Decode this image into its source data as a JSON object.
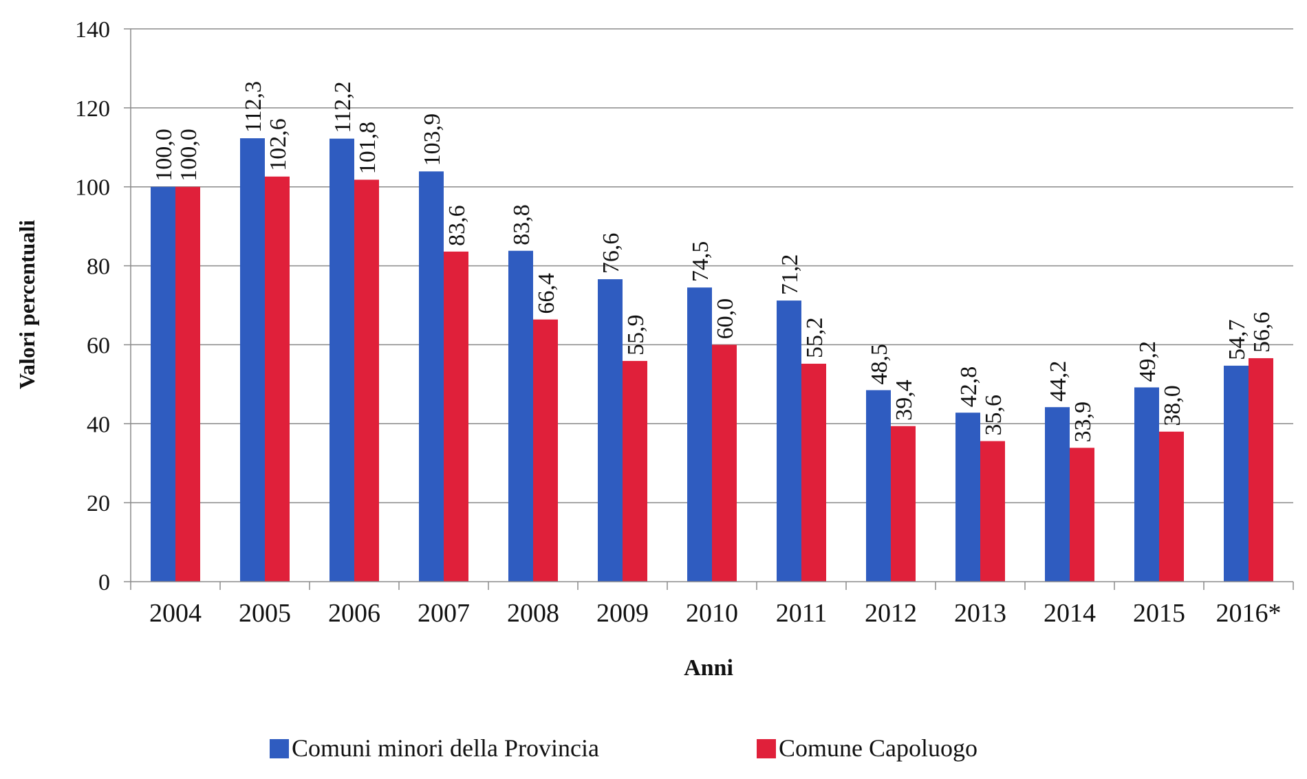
{
  "chart_data": {
    "type": "bar",
    "title": "",
    "xlabel": "Anni",
    "ylabel": "Valori percentuali",
    "ylim": [
      0,
      140
    ],
    "yticks": [
      0,
      20,
      40,
      60,
      80,
      100,
      120,
      140
    ],
    "grid": true,
    "legend_position": "bottom",
    "categories": [
      "2004",
      "2005",
      "2006",
      "2007",
      "2008",
      "2009",
      "2010",
      "2011",
      "2012",
      "2013",
      "2014",
      "2015",
      "2016*"
    ],
    "series": [
      {
        "name": "Comuni minori della Provincia",
        "color": "#2f5cc0",
        "values": [
          100.0,
          112.3,
          112.2,
          103.9,
          83.8,
          76.6,
          74.5,
          71.2,
          48.5,
          42.8,
          44.2,
          49.2,
          54.7
        ],
        "labels": [
          "100,0",
          "112,3",
          "112,2",
          "103,9",
          "83,8",
          "76,6",
          "74,5",
          "71,2",
          "48,5",
          "42,8",
          "44,2",
          "49,2",
          "54,7"
        ]
      },
      {
        "name": "Comune Capoluogo",
        "color": "#e0203a",
        "values": [
          100.0,
          102.6,
          101.8,
          83.6,
          66.4,
          55.9,
          60.0,
          55.2,
          39.4,
          35.6,
          33.9,
          38.0,
          56.6
        ],
        "labels": [
          "100,0",
          "102,6",
          "101,8",
          "83,6",
          "66,4",
          "55,9",
          "60,0",
          "55,2",
          "39,4",
          "35,6",
          "33,9",
          "38,0",
          "56,6"
        ]
      }
    ]
  }
}
